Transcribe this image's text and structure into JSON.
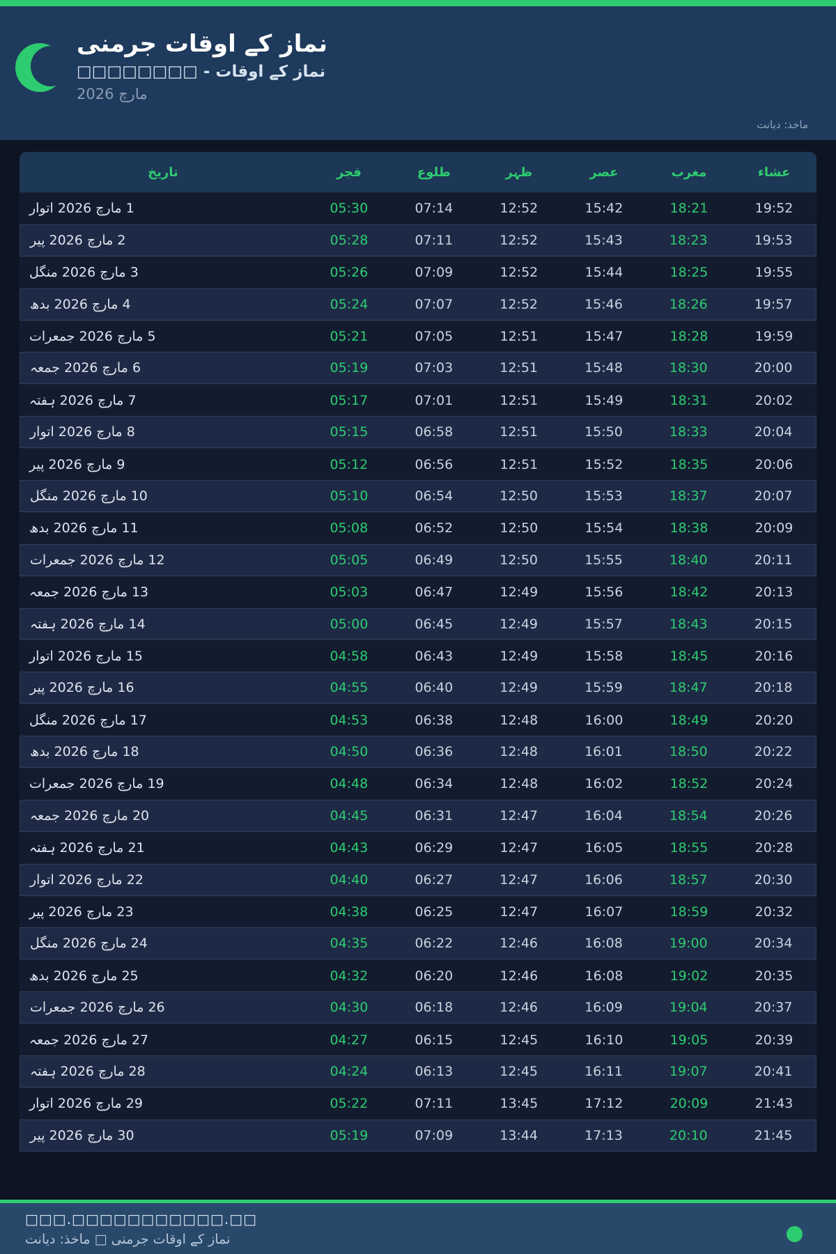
{
  "colors": {
    "accent_green": "#2ecc71",
    "header_bg": "#1e3a5c",
    "page_bg": "#0d1524",
    "table_header_bg": "#1d3756",
    "even_row_bg": "#1e2a45",
    "footer_bg": "#29496b"
  },
  "header": {
    "moon_icon": "crescent-moon",
    "title": "نماز کے اوقات جرمنی",
    "subtitle": "نماز کے اوقات - □□□□□□□□",
    "month": "مارچ 2026",
    "source": "ماخذ: دیانت"
  },
  "table": {
    "columns": [
      "تاریخ",
      "فجر",
      "طلوع",
      "ظہر",
      "عصر",
      "مغرب",
      "عشاء"
    ],
    "green_time_indices": [
      0,
      4
    ],
    "rows": [
      {
        "date": "1 مارچ 2026 اتوار",
        "times": [
          "05:30",
          "07:14",
          "12:52",
          "15:42",
          "18:21",
          "19:52"
        ]
      },
      {
        "date": "2 مارچ 2026 پیر",
        "times": [
          "05:28",
          "07:11",
          "12:52",
          "15:43",
          "18:23",
          "19:53"
        ]
      },
      {
        "date": "3 مارچ 2026 منگل",
        "times": [
          "05:26",
          "07:09",
          "12:52",
          "15:44",
          "18:25",
          "19:55"
        ]
      },
      {
        "date": "4 مارچ 2026 بدھ",
        "times": [
          "05:24",
          "07:07",
          "12:52",
          "15:46",
          "18:26",
          "19:57"
        ]
      },
      {
        "date": "5 مارچ 2026 جمعرات",
        "times": [
          "05:21",
          "07:05",
          "12:51",
          "15:47",
          "18:28",
          "19:59"
        ]
      },
      {
        "date": "6 مارچ 2026 جمعہ",
        "times": [
          "05:19",
          "07:03",
          "12:51",
          "15:48",
          "18:30",
          "20:00"
        ]
      },
      {
        "date": "7 مارچ 2026 ہفتہ",
        "times": [
          "05:17",
          "07:01",
          "12:51",
          "15:49",
          "18:31",
          "20:02"
        ]
      },
      {
        "date": "8 مارچ 2026 اتوار",
        "times": [
          "05:15",
          "06:58",
          "12:51",
          "15:50",
          "18:33",
          "20:04"
        ]
      },
      {
        "date": "9 مارچ 2026 پیر",
        "times": [
          "05:12",
          "06:56",
          "12:51",
          "15:52",
          "18:35",
          "20:06"
        ]
      },
      {
        "date": "10 مارچ 2026 منگل",
        "times": [
          "05:10",
          "06:54",
          "12:50",
          "15:53",
          "18:37",
          "20:07"
        ]
      },
      {
        "date": "11 مارچ 2026 بدھ",
        "times": [
          "05:08",
          "06:52",
          "12:50",
          "15:54",
          "18:38",
          "20:09"
        ]
      },
      {
        "date": "12 مارچ 2026 جمعرات",
        "times": [
          "05:05",
          "06:49",
          "12:50",
          "15:55",
          "18:40",
          "20:11"
        ]
      },
      {
        "date": "13 مارچ 2026 جمعہ",
        "times": [
          "05:03",
          "06:47",
          "12:49",
          "15:56",
          "18:42",
          "20:13"
        ]
      },
      {
        "date": "14 مارچ 2026 ہفتہ",
        "times": [
          "05:00",
          "06:45",
          "12:49",
          "15:57",
          "18:43",
          "20:15"
        ]
      },
      {
        "date": "15 مارچ 2026 اتوار",
        "times": [
          "04:58",
          "06:43",
          "12:49",
          "15:58",
          "18:45",
          "20:16"
        ]
      },
      {
        "date": "16 مارچ 2026 پیر",
        "times": [
          "04:55",
          "06:40",
          "12:49",
          "15:59",
          "18:47",
          "20:18"
        ]
      },
      {
        "date": "17 مارچ 2026 منگل",
        "times": [
          "04:53",
          "06:38",
          "12:48",
          "16:00",
          "18:49",
          "20:20"
        ]
      },
      {
        "date": "18 مارچ 2026 بدھ",
        "times": [
          "04:50",
          "06:36",
          "12:48",
          "16:01",
          "18:50",
          "20:22"
        ]
      },
      {
        "date": "19 مارچ 2026 جمعرات",
        "times": [
          "04:48",
          "06:34",
          "12:48",
          "16:02",
          "18:52",
          "20:24"
        ]
      },
      {
        "date": "20 مارچ 2026 جمعہ",
        "times": [
          "04:45",
          "06:31",
          "12:47",
          "16:04",
          "18:54",
          "20:26"
        ]
      },
      {
        "date": "21 مارچ 2026 ہفتہ",
        "times": [
          "04:43",
          "06:29",
          "12:47",
          "16:05",
          "18:55",
          "20:28"
        ]
      },
      {
        "date": "22 مارچ 2026 اتوار",
        "times": [
          "04:40",
          "06:27",
          "12:47",
          "16:06",
          "18:57",
          "20:30"
        ]
      },
      {
        "date": "23 مارچ 2026 پیر",
        "times": [
          "04:38",
          "06:25",
          "12:47",
          "16:07",
          "18:59",
          "20:32"
        ]
      },
      {
        "date": "24 مارچ 2026 منگل",
        "times": [
          "04:35",
          "06:22",
          "12:46",
          "16:08",
          "19:00",
          "20:34"
        ]
      },
      {
        "date": "25 مارچ 2026 بدھ",
        "times": [
          "04:32",
          "06:20",
          "12:46",
          "16:08",
          "19:02",
          "20:35"
        ]
      },
      {
        "date": "26 مارچ 2026 جمعرات",
        "times": [
          "04:30",
          "06:18",
          "12:46",
          "16:09",
          "19:04",
          "20:37"
        ]
      },
      {
        "date": "27 مارچ 2026 جمعہ",
        "times": [
          "04:27",
          "06:15",
          "12:45",
          "16:10",
          "19:05",
          "20:39"
        ]
      },
      {
        "date": "28 مارچ 2026 ہفتہ",
        "times": [
          "04:24",
          "06:13",
          "12:45",
          "16:11",
          "19:07",
          "20:41"
        ]
      },
      {
        "date": "29 مارچ 2026 اتوار",
        "times": [
          "05:22",
          "07:11",
          "13:45",
          "17:12",
          "20:09",
          "21:43"
        ]
      },
      {
        "date": "30 مارچ 2026 پیر",
        "times": [
          "05:19",
          "07:09",
          "13:44",
          "17:13",
          "20:10",
          "21:45"
        ]
      }
    ]
  },
  "footer": {
    "url": "□□□.□□□□□□□□□□□.□□",
    "credit": "نماز کے اوقات جرمنی □ ماخذ: دیانت"
  }
}
